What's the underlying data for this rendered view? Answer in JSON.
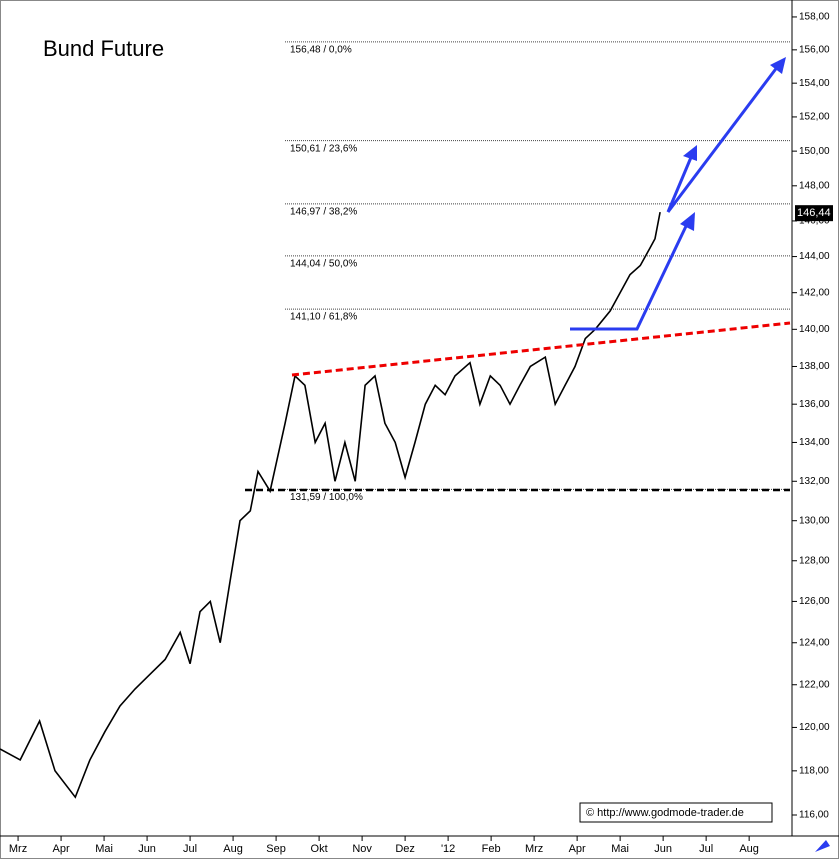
{
  "chart_data": {
    "type": "line",
    "title": "Bund Future",
    "log_scale": true,
    "color": "#000000",
    "x": [
      -0.42,
      0.05,
      0.5,
      0.86,
      1.33,
      1.67,
      2.02,
      2.37,
      2.72,
      3.07,
      3.42,
      3.77,
      4.0,
      4.23,
      4.47,
      4.7,
      4.93,
      5.16,
      5.4,
      5.58,
      5.86,
      6.21,
      6.44,
      6.67,
      6.91,
      7.14,
      7.37,
      7.6,
      7.84,
      8.07,
      8.3,
      8.53,
      8.77,
      9.0,
      9.23,
      9.47,
      9.7,
      9.93,
      10.16,
      10.51,
      10.74,
      10.98,
      11.21,
      11.44,
      11.67,
      11.91,
      12.26,
      12.49,
      12.72,
      12.95,
      13.19,
      13.42,
      13.77,
      14.0,
      14.23,
      14.47,
      14.7,
      14.81,
      14.93
    ],
    "values": [
      119,
      118.5,
      120.3,
      118,
      116.8,
      118.5,
      119.8,
      121,
      121.8,
      122.5,
      123.2,
      124.5,
      123,
      125.5,
      126,
      124,
      127,
      130,
      130.5,
      132.5,
      131.5,
      135,
      137.5,
      137,
      134,
      135,
      132,
      134,
      132,
      137,
      137.5,
      135,
      134,
      132.2,
      134,
      136,
      137,
      136.5,
      137.5,
      138.2,
      136,
      137.5,
      137,
      136,
      137,
      138,
      138.5,
      136,
      137,
      138,
      139.5,
      140,
      141,
      142,
      143,
      143.5,
      144.5,
      145,
      146.5
    ],
    "xlim": [
      -0.42,
      17.95
    ],
    "xticks": [
      {
        "value": 0,
        "label": "Mrz"
      },
      {
        "value": 1,
        "label": "Apr"
      },
      {
        "value": 2,
        "label": "Mai"
      },
      {
        "value": 3,
        "label": "Jun"
      },
      {
        "value": 4,
        "label": "Jul"
      },
      {
        "value": 5,
        "label": "Aug"
      },
      {
        "value": 6,
        "label": "Sep"
      },
      {
        "value": 7,
        "label": "Okt"
      },
      {
        "value": 8,
        "label": "Nov"
      },
      {
        "value": 9,
        "label": "Dez"
      },
      {
        "value": 10,
        "label": "'12"
      },
      {
        "value": 11,
        "label": "Feb"
      },
      {
        "value": 12,
        "label": "Mrz"
      },
      {
        "value": 13,
        "label": "Apr"
      },
      {
        "value": 14,
        "label": "Mai"
      },
      {
        "value": 15,
        "label": "Jun"
      },
      {
        "value": 16,
        "label": "Jul"
      },
      {
        "value": 17,
        "label": "Aug"
      }
    ],
    "ylim": [
      115.06,
      159.04
    ],
    "yticks": [
      {
        "value": 116,
        "label": "116,00"
      },
      {
        "value": 118,
        "label": "118,00"
      },
      {
        "value": 120,
        "label": "120,00"
      },
      {
        "value": 122,
        "label": "122,00"
      },
      {
        "value": 124,
        "label": "124,00"
      },
      {
        "value": 126,
        "label": "126,00"
      },
      {
        "value": 128,
        "label": "128,00"
      },
      {
        "value": 130,
        "label": "130,00"
      },
      {
        "value": 132,
        "label": "132,00"
      },
      {
        "value": 134,
        "label": "134,00"
      },
      {
        "value": 136,
        "label": "136,00"
      },
      {
        "value": 138,
        "label": "138,00"
      },
      {
        "value": 140,
        "label": "140,00"
      },
      {
        "value": 142,
        "label": "142,00"
      },
      {
        "value": 144,
        "label": "144,00"
      },
      {
        "value": 146,
        "label": "146,00"
      },
      {
        "value": 148,
        "label": "148,00"
      },
      {
        "value": 150,
        "label": "150,00"
      },
      {
        "value": 152,
        "label": "152,00"
      },
      {
        "value": 154,
        "label": "154,00"
      },
      {
        "value": 156,
        "label": "156,00"
      },
      {
        "value": 158,
        "label": "158,00"
      }
    ],
    "levels": [
      {
        "value": 156.48,
        "label": "156,48 / 0,0%"
      },
      {
        "value": 150.61,
        "label": "150,61 / 23,6%"
      },
      {
        "value": 146.97,
        "label": "146,97 / 38,2%"
      },
      {
        "value": 144.04,
        "label": "144,04 / 50,0%"
      },
      {
        "value": 141.1,
        "label": "141,10 / 61,8%"
      },
      {
        "value": 131.59,
        "label": "131,59 / 100,0%"
      }
    ],
    "last_price": {
      "value": 146.44,
      "label": "146,44"
    },
    "source": "© http://www.godmode-trader.de"
  }
}
